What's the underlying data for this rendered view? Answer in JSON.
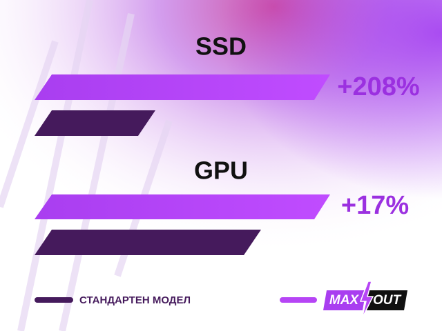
{
  "groups": [
    {
      "label": "SSD",
      "gain": "+208%"
    },
    {
      "label": "GPU",
      "gain": "+17%"
    }
  ],
  "legend": {
    "standard": "СТАНДАРТЕН МОДЕЛ",
    "logo": {
      "left": "MAX",
      "right": "OUT"
    }
  }
}
